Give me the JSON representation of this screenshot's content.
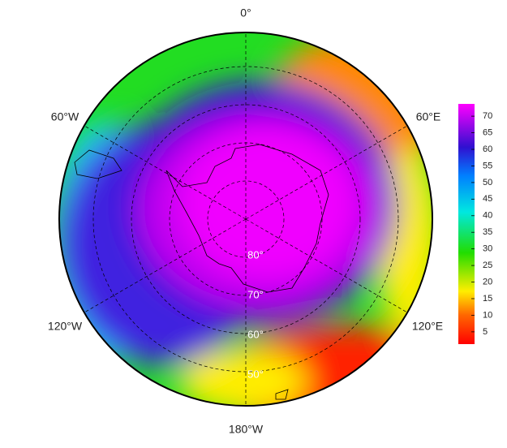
{
  "map": {
    "longitude_labels": [
      "0°",
      "60°E",
      "120°E",
      "180°W",
      "120°W",
      "60°W"
    ],
    "latitude_labels": [
      "80°",
      "70°",
      "60°",
      "50°"
    ],
    "colorbar": {
      "clim": [
        1.3,
        73.7
      ],
      "ticks": [
        5,
        10,
        15,
        20,
        25,
        30,
        35,
        40,
        45,
        50,
        55,
        60,
        65,
        70
      ]
    }
  }
}
